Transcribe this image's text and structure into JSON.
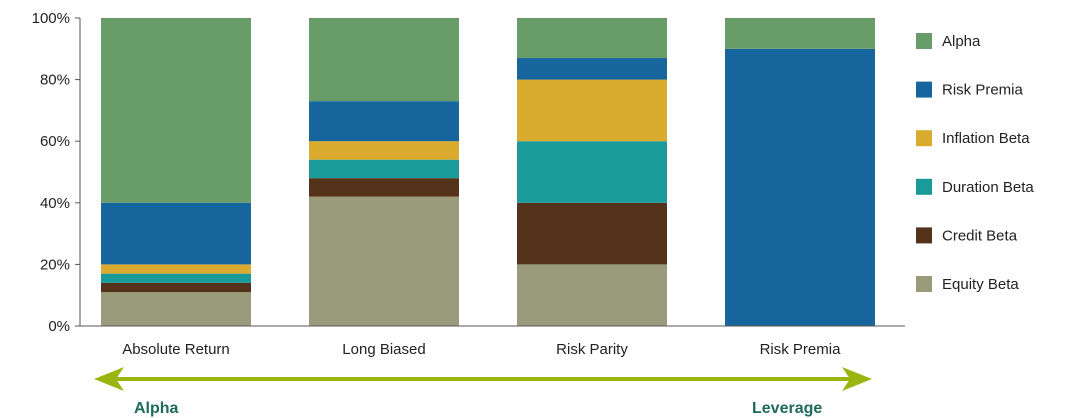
{
  "chart_data": {
    "type": "bar",
    "stacked": true,
    "categories": [
      "Absolute Return",
      "Long Biased",
      "Risk Parity",
      "Risk Premia"
    ],
    "series": [
      {
        "name": "Equity Beta",
        "color": "#9a9b7b",
        "values": [
          11,
          42,
          20,
          0
        ]
      },
      {
        "name": "Credit Beta",
        "color": "#55321b",
        "values": [
          3,
          6,
          20,
          0
        ]
      },
      {
        "name": "Duration Beta",
        "color": "#1a9b99",
        "values": [
          3,
          6,
          20,
          0
        ]
      },
      {
        "name": "Inflation Beta",
        "color": "#dbab2f",
        "values": [
          3,
          6,
          20,
          0
        ]
      },
      {
        "name": "Risk Premia",
        "color": "#17659d",
        "values": [
          20,
          13,
          7,
          90
        ]
      },
      {
        "name": "Alpha",
        "color": "#689d69",
        "values": [
          60,
          27,
          13,
          10
        ]
      }
    ],
    "legend_order": [
      "Alpha",
      "Risk Premia",
      "Inflation Beta",
      "Duration Beta",
      "Credit Beta",
      "Equity Beta"
    ],
    "yticks": [
      "0%",
      "20%",
      "40%",
      "60%",
      "80%",
      "100%"
    ],
    "ylim": [
      0,
      100
    ],
    "legend_position": "right",
    "grid": false
  },
  "arrow": {
    "left_label": "Alpha",
    "right_label": "Leverage",
    "color": "#9bb50f",
    "label_color": "#1e6b5c"
  }
}
